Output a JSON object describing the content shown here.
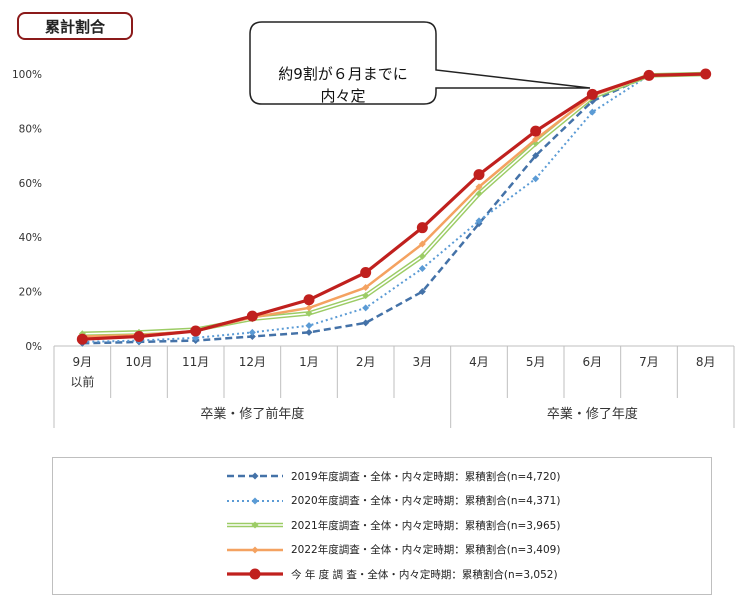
{
  "chart_data": {
    "type": "line",
    "title": "累計割合",
    "annotation": "約9割が６月までに\n内々定",
    "categories": [
      "9月\n以前",
      "10月",
      "11月",
      "12月",
      "1月",
      "2月",
      "3月",
      "4月",
      "5月",
      "6月",
      "7月",
      "8月"
    ],
    "group_labels": [
      "卒業・修了前年度",
      "卒業・修了年度"
    ],
    "y_ticks": [
      "0%",
      "20%",
      "40%",
      "60%",
      "80%",
      "100%"
    ],
    "ylim": [
      0,
      100
    ],
    "series": [
      {
        "name": "2019年度調査・全体・内々定時期：累積割合(n=4,720)",
        "color": "#4472a8",
        "style": "dash",
        "values": [
          1,
          1.5,
          2,
          3.5,
          5,
          8.5,
          20,
          45,
          70,
          90,
          99.5,
          100
        ]
      },
      {
        "name": "2020年度調査・全体・内々定時期：累積割合(n=4,371)",
        "color": "#5b9bd5",
        "style": "dot",
        "values": [
          1.5,
          2,
          3,
          5,
          7.5,
          14,
          28.5,
          46,
          61.5,
          86,
          99.5,
          100
        ]
      },
      {
        "name": "2021年度調査・全体・内々定時期：累積割合(n=3,965)",
        "color": "#9ccc65",
        "style": "double",
        "values": [
          4.5,
          5,
          6,
          10,
          12,
          18.5,
          33,
          56,
          74.5,
          91.5,
          99.5,
          100
        ]
      },
      {
        "name": "2022年度調査・全体・内々定時期：累積割合(n=3,409)",
        "color": "#f4a261",
        "style": "solid",
        "values": [
          3.5,
          4,
          5.5,
          10.5,
          14,
          21.5,
          37.5,
          58.5,
          76,
          92,
          99.5,
          100
        ]
      },
      {
        "name": "今 年 度 調 査・全体・内々定時期：累積割合(n=3,052)",
        "color": "#c0201e",
        "style": "bold",
        "values": [
          2.5,
          3.5,
          5.5,
          11,
          17,
          27,
          43.5,
          63,
          79,
          92.5,
          99.5,
          100
        ]
      }
    ],
    "grid": false,
    "legend_position": "bottom"
  }
}
